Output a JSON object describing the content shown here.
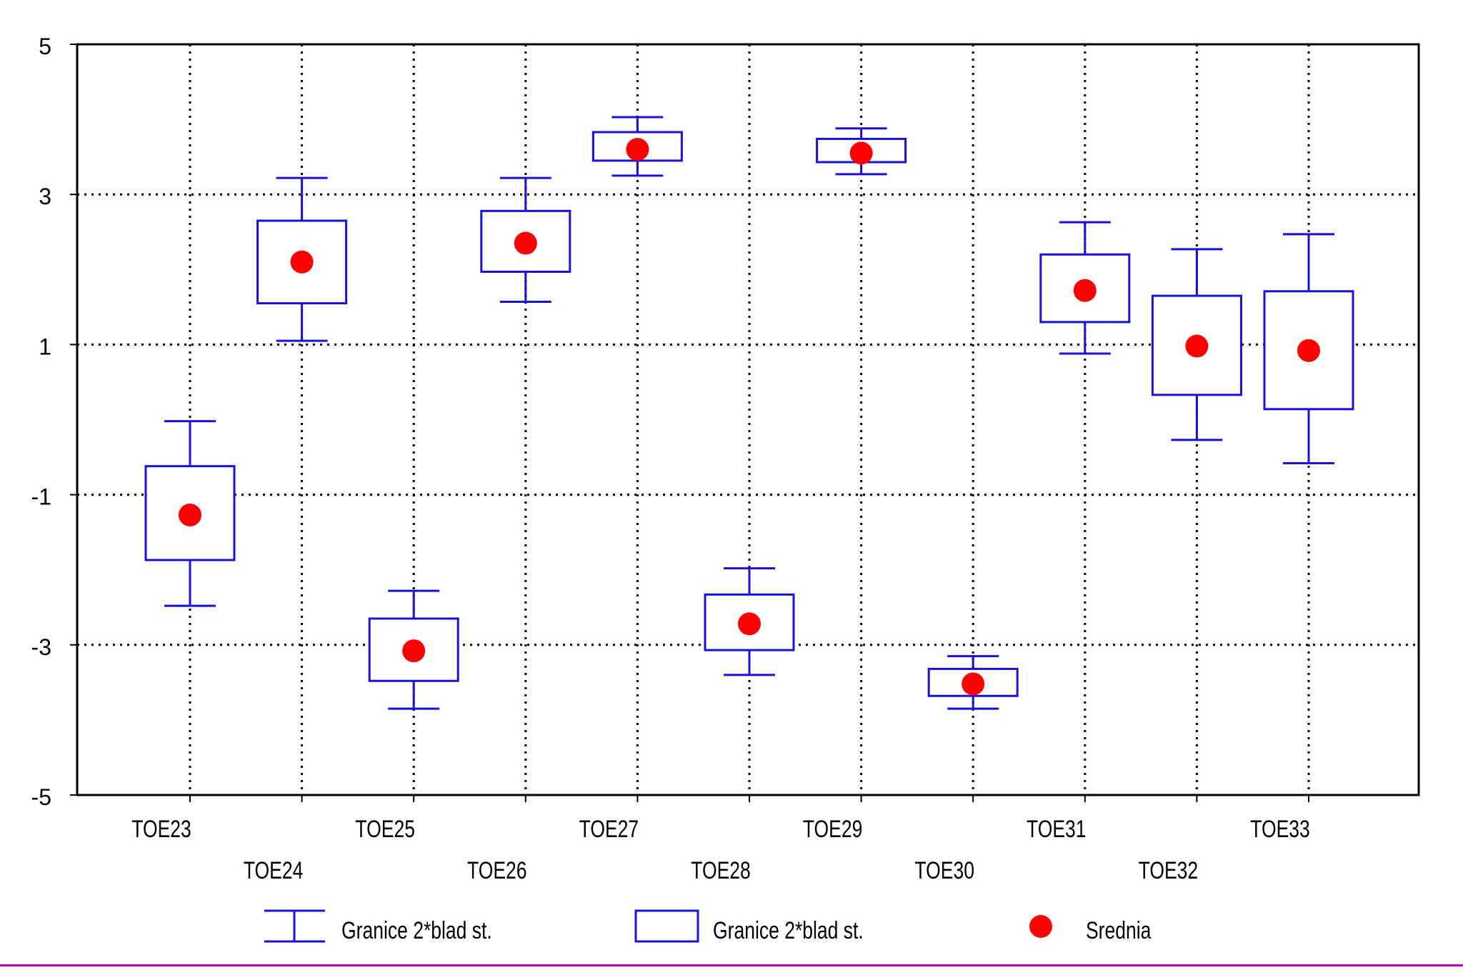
{
  "chart_data": {
    "type": "box",
    "y_ticks": [
      "5",
      "3",
      "1",
      "-1",
      "-3",
      "-5"
    ],
    "ylim": [
      -5,
      5
    ],
    "grid": true,
    "categories": [
      "TOE23",
      "TOE24",
      "TOE25",
      "TOE26",
      "TOE27",
      "TOE28",
      "TOE29",
      "TOE30",
      "TOE31",
      "TOE32",
      "TOE33"
    ],
    "series": [
      {
        "category": "TOE23",
        "mean": -1.27,
        "box_low": -1.87,
        "box_high": -0.62,
        "whisker_low": -2.48,
        "whisker_high": -0.02
      },
      {
        "category": "TOE24",
        "mean": 2.1,
        "box_low": 1.55,
        "box_high": 2.65,
        "whisker_low": 1.05,
        "whisker_high": 3.22
      },
      {
        "category": "TOE25",
        "mean": -3.08,
        "box_low": -3.48,
        "box_high": -2.65,
        "whisker_low": -3.85,
        "whisker_high": -2.28
      },
      {
        "category": "TOE26",
        "mean": 2.35,
        "box_low": 1.97,
        "box_high": 2.78,
        "whisker_low": 1.57,
        "whisker_high": 3.22
      },
      {
        "category": "TOE27",
        "mean": 3.6,
        "box_low": 3.45,
        "box_high": 3.83,
        "whisker_low": 3.25,
        "whisker_high": 4.03
      },
      {
        "category": "TOE28",
        "mean": -2.72,
        "box_low": -3.07,
        "box_high": -2.33,
        "whisker_low": -3.4,
        "whisker_high": -1.98
      },
      {
        "category": "TOE29",
        "mean": 3.55,
        "box_low": 3.43,
        "box_high": 3.74,
        "whisker_low": 3.27,
        "whisker_high": 3.88
      },
      {
        "category": "TOE30",
        "mean": -3.52,
        "box_low": -3.68,
        "box_high": -3.32,
        "whisker_low": -3.85,
        "whisker_high": -3.15
      },
      {
        "category": "TOE31",
        "mean": 1.72,
        "box_low": 1.3,
        "box_high": 2.2,
        "whisker_low": 0.88,
        "whisker_high": 2.63
      },
      {
        "category": "TOE32",
        "mean": 0.98,
        "box_low": 0.33,
        "box_high": 1.65,
        "whisker_low": -0.27,
        "whisker_high": 2.27
      },
      {
        "category": "TOE33",
        "mean": 0.92,
        "box_low": 0.14,
        "box_high": 1.71,
        "whisker_low": -0.58,
        "whisker_high": 2.47
      }
    ],
    "legend": {
      "position": "bottom",
      "items": [
        {
          "label": "Granice 2*blad st.",
          "symbol": "whisker"
        },
        {
          "label": "Granice 2*blad st.",
          "symbol": "box"
        },
        {
          "label": "Srednia",
          "symbol": "dot"
        }
      ]
    },
    "colors": {
      "box": "#1a10d8",
      "mean": "#ff0000",
      "axis": "#000000",
      "grid": "#000000"
    }
  }
}
